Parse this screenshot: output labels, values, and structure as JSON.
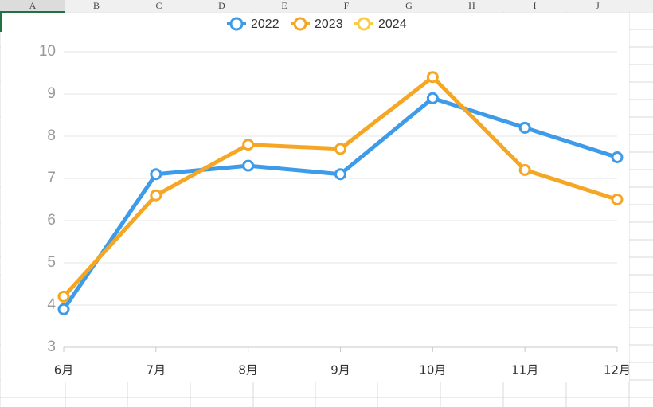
{
  "spreadsheet": {
    "columns": [
      "A",
      "B",
      "C",
      "D",
      "E",
      "F",
      "G",
      "H",
      "I",
      "J"
    ]
  },
  "chart_data": {
    "type": "line",
    "categories": [
      "6月",
      "7月",
      "8月",
      "9月",
      "10月",
      "11月",
      "12月"
    ],
    "series": [
      {
        "name": "2022",
        "color": "#3d9be9",
        "values": [
          3.9,
          7.1,
          7.3,
          7.1,
          8.9,
          8.2,
          7.5
        ]
      },
      {
        "name": "2023",
        "color": "#f5a623",
        "values": [
          4.2,
          6.6,
          7.8,
          7.7,
          9.4,
          7.2,
          6.5
        ]
      },
      {
        "name": "2024",
        "color": "#f9cd45",
        "values": [
          null,
          null,
          null,
          null,
          null,
          null,
          null
        ]
      }
    ],
    "ylim": [
      3,
      10
    ],
    "yticks": [
      3,
      4,
      5,
      6,
      7,
      8,
      9,
      10
    ],
    "grid": true,
    "legend": "top"
  }
}
